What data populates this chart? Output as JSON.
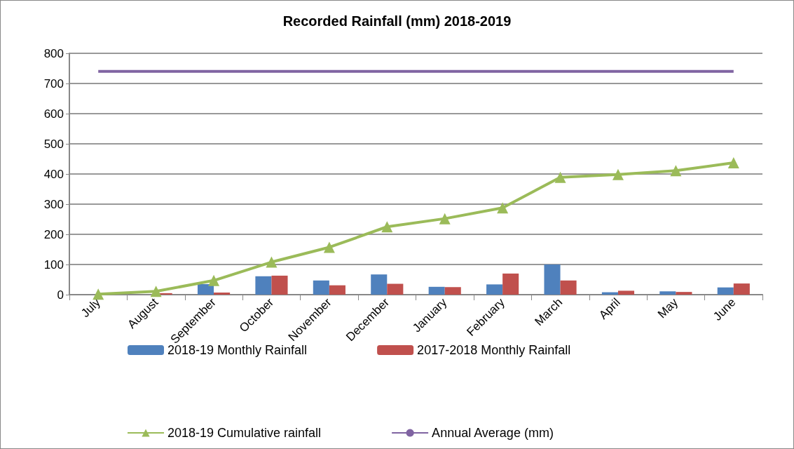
{
  "chart_data": {
    "type": "bar",
    "title": "Recorded Rainfall (mm) 2018-2019",
    "categories": [
      "July",
      "August",
      "September",
      "October",
      "November",
      "December",
      "January",
      "February",
      "March",
      "April",
      "May",
      "June"
    ],
    "series": [
      {
        "name": "2018-19 Monthly Rainfall",
        "color": "#4f81bd",
        "values": [
          0,
          null,
          35,
          61,
          47,
          67,
          26,
          34,
          100,
          8,
          11,
          24
        ]
      },
      {
        "name": "2017-2018 Monthly Rainfall",
        "color": "#c0504d",
        "values": [
          0,
          5,
          7,
          63,
          31,
          36,
          25,
          70,
          47,
          13,
          9,
          37
        ]
      },
      {
        "name": "2018-19 Cumulative rainfall",
        "type": "line",
        "marker": "triangle",
        "color": "#9bbb59",
        "values": [
          2,
          11,
          47,
          108,
          157,
          225,
          252,
          288,
          389,
          398,
          411,
          437
        ]
      },
      {
        "name": "Annual Average (mm)",
        "type": "line",
        "marker": "none",
        "color": "#8064a2",
        "values": [
          740,
          740,
          740,
          740,
          740,
          740,
          740,
          740,
          740,
          740,
          740,
          740
        ]
      }
    ],
    "ylim": [
      0,
      800
    ],
    "yticks": [
      0,
      100,
      200,
      300,
      400,
      500,
      600,
      700,
      800
    ],
    "grid": "y",
    "legend": "bottom"
  }
}
